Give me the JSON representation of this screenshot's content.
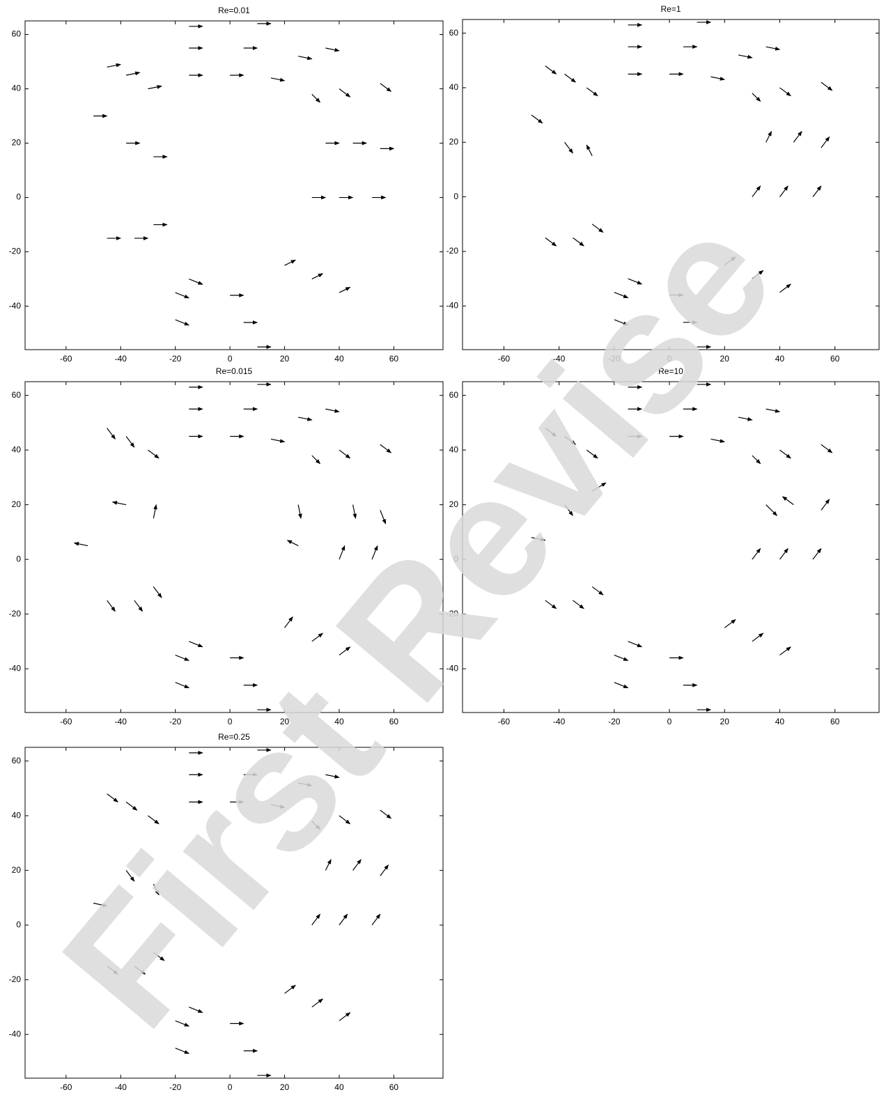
{
  "chart_data": [
    {
      "type": "quiver",
      "title": "Re=0.01",
      "color": "#000000",
      "xlim": [
        -75,
        78
      ],
      "ylim": [
        -56,
        65
      ],
      "xticks": [
        -60,
        -40,
        -20,
        0,
        20,
        40,
        60
      ],
      "yticks": [
        -40,
        -20,
        0,
        20,
        40,
        60
      ],
      "x": [
        -30,
        -15,
        0,
        15,
        30,
        35,
        30,
        20,
        0,
        -15,
        -28,
        -28,
        -38,
        -15,
        5,
        25,
        40,
        45,
        40,
        30,
        5,
        -20,
        -35,
        -38,
        -45,
        -15,
        10,
        35,
        55,
        55,
        52,
        40,
        10,
        -20,
        -45,
        -50
      ],
      "y": [
        40,
        45,
        45,
        44,
        38,
        20,
        0,
        -25,
        -36,
        -30,
        -10,
        15,
        45,
        55,
        55,
        52,
        40,
        20,
        0,
        -30,
        -46,
        -35,
        -15,
        20,
        48,
        63,
        64,
        55,
        42,
        18,
        0,
        -35,
        -55,
        -45,
        -15,
        30
      ],
      "u": [
        5,
        5,
        5,
        5,
        3,
        5,
        5,
        4,
        5,
        5,
        5,
        5,
        5,
        5,
        5,
        5,
        4,
        5,
        5,
        4,
        5,
        5,
        5,
        5,
        5,
        5,
        5,
        5,
        4,
        5,
        5,
        4,
        5,
        5,
        5,
        5
      ],
      "v": [
        1,
        0,
        0,
        -1,
        -3,
        0,
        0,
        2,
        0,
        -2,
        0,
        0,
        1,
        0,
        0,
        -1,
        -3,
        0,
        0,
        2,
        0,
        -2,
        0,
        0,
        1,
        0,
        0,
        -1,
        -3,
        0,
        0,
        2,
        0,
        -2,
        0,
        0
      ]
    },
    {
      "type": "quiver",
      "title": "Re=1",
      "color": "#000000",
      "xlim": [
        -75,
        76
      ],
      "ylim": [
        -56,
        65
      ],
      "xticks": [
        -60,
        -40,
        -20,
        0,
        20,
        40,
        60
      ],
      "yticks": [
        -40,
        -20,
        0,
        20,
        40,
        60
      ],
      "x": [
        -30,
        -15,
        0,
        15,
        30,
        35,
        30,
        20,
        0,
        -15,
        -28,
        -28,
        -38,
        -15,
        5,
        25,
        40,
        45,
        40,
        30,
        5,
        -20,
        -35,
        -38,
        -45,
        -15,
        10,
        35,
        55,
        55,
        52,
        40,
        10,
        -20,
        -45,
        -50
      ],
      "y": [
        40,
        45,
        45,
        44,
        38,
        20,
        0,
        -25,
        -36,
        -30,
        -10,
        15,
        45,
        55,
        55,
        52,
        40,
        20,
        0,
        -30,
        -46,
        -35,
        -15,
        20,
        48,
        63,
        64,
        55,
        42,
        18,
        0,
        -35,
        -55,
        -45,
        -15,
        30
      ],
      "u": [
        4,
        5,
        5,
        5,
        3,
        2,
        3,
        4,
        5,
        5,
        4,
        -2,
        4,
        5,
        5,
        5,
        4,
        3,
        3,
        4,
        5,
        5,
        4,
        3,
        4,
        5,
        5,
        5,
        4,
        3,
        3,
        4,
        5,
        5,
        4,
        4
      ],
      "v": [
        -3,
        0,
        0,
        -1,
        -3,
        4,
        4,
        3,
        0,
        -2,
        -3,
        4,
        -3,
        0,
        0,
        -1,
        -3,
        4,
        4,
        3,
        0,
        -2,
        -3,
        -4,
        -3,
        0,
        0,
        -1,
        -3,
        4,
        4,
        3,
        0,
        -2,
        -3,
        -3
      ]
    },
    {
      "type": "quiver",
      "title": "Re=0.015",
      "color": "#000000",
      "xlim": [
        -75,
        78
      ],
      "ylim": [
        -56,
        65
      ],
      "xticks": [
        -60,
        -40,
        -20,
        0,
        20,
        40,
        60
      ],
      "yticks": [
        -40,
        -20,
        0,
        20,
        40,
        60
      ],
      "x": [
        -30,
        -15,
        0,
        15,
        30,
        25,
        25,
        20,
        0,
        -15,
        -28,
        -28,
        -38,
        -15,
        5,
        25,
        40,
        45,
        40,
        30,
        5,
        -20,
        -35,
        -38,
        -45,
        -15,
        10,
        35,
        55,
        55,
        52,
        40,
        10,
        -20,
        -45,
        -52
      ],
      "y": [
        40,
        45,
        45,
        44,
        38,
        20,
        5,
        -25,
        -36,
        -30,
        -10,
        15,
        45,
        55,
        55,
        52,
        40,
        20,
        0,
        -30,
        -46,
        -35,
        -15,
        20,
        48,
        63,
        64,
        55,
        42,
        18,
        0,
        -35,
        -55,
        -45,
        -15,
        5
      ],
      "u": [
        4,
        5,
        5,
        5,
        3,
        1,
        -4,
        3,
        5,
        5,
        3,
        1,
        3,
        5,
        5,
        5,
        4,
        1,
        2,
        4,
        5,
        5,
        3,
        -5,
        3,
        5,
        5,
        5,
        4,
        2,
        2,
        4,
        5,
        5,
        3,
        -5
      ],
      "v": [
        -3,
        0,
        0,
        -1,
        -3,
        -5,
        2,
        4,
        0,
        -2,
        -4,
        5,
        -4,
        0,
        0,
        -1,
        -3,
        -5,
        5,
        3,
        0,
        -2,
        -4,
        1,
        -4,
        0,
        0,
        -1,
        -3,
        -5,
        5,
        3,
        0,
        -2,
        -4,
        1
      ]
    },
    {
      "type": "quiver",
      "title": "Re=10",
      "color": "#000000",
      "xlim": [
        -75,
        76
      ],
      "ylim": [
        -56,
        65
      ],
      "xticks": [
        -60,
        -40,
        -20,
        0,
        20,
        40,
        60
      ],
      "yticks": [
        -40,
        -20,
        0,
        20,
        40,
        60
      ],
      "x": [
        -30,
        -15,
        0,
        15,
        30,
        35,
        30,
        20,
        0,
        -15,
        -28,
        -28,
        -38,
        -15,
        5,
        25,
        40,
        45,
        40,
        30,
        5,
        -20,
        -35,
        -38,
        -45,
        -15,
        10,
        35,
        55,
        55,
        52,
        40,
        10,
        -20,
        -45,
        -50
      ],
      "y": [
        40,
        45,
        45,
        44,
        38,
        20,
        0,
        -25,
        -36,
        -30,
        -10,
        25,
        45,
        55,
        55,
        52,
        40,
        20,
        0,
        -30,
        -46,
        -35,
        -15,
        20,
        48,
        63,
        64,
        55,
        42,
        18,
        0,
        -35,
        -55,
        -45,
        -15,
        8
      ],
      "u": [
        4,
        5,
        5,
        5,
        3,
        4,
        3,
        4,
        5,
        5,
        4,
        5,
        4,
        5,
        5,
        5,
        4,
        -4,
        3,
        4,
        5,
        5,
        4,
        3,
        4,
        5,
        5,
        5,
        4,
        3,
        3,
        4,
        5,
        5,
        4,
        5
      ],
      "v": [
        -3,
        0,
        0,
        -1,
        -3,
        -4,
        4,
        3,
        0,
        -2,
        -3,
        3,
        -3,
        0,
        0,
        -1,
        -3,
        3,
        4,
        3,
        0,
        -2,
        -3,
        -4,
        -3,
        0,
        0,
        -1,
        -3,
        4,
        4,
        3,
        0,
        -2,
        -3,
        -1
      ]
    },
    {
      "type": "quiver",
      "title": "Re=0.25",
      "color": "#000000",
      "xlim": [
        -75,
        78
      ],
      "ylim": [
        -56,
        65
      ],
      "xticks": [
        -60,
        -40,
        -20,
        0,
        20,
        40,
        60
      ],
      "yticks": [
        -40,
        -20,
        0,
        20,
        40,
        60
      ],
      "x": [
        -30,
        -15,
        0,
        15,
        30,
        35,
        30,
        20,
        0,
        -15,
        -28,
        -28,
        -38,
        -15,
        5,
        25,
        40,
        45,
        40,
        30,
        5,
        -20,
        -35,
        -38,
        -45,
        -15,
        10,
        35,
        55,
        55,
        52,
        40,
        10,
        -20,
        -45,
        -50
      ],
      "y": [
        40,
        45,
        45,
        44,
        38,
        20,
        0,
        -25,
        -36,
        -30,
        -10,
        15,
        45,
        55,
        55,
        52,
        40,
        20,
        0,
        -30,
        -46,
        -35,
        -15,
        20,
        48,
        63,
        64,
        55,
        42,
        18,
        0,
        -35,
        -55,
        -45,
        -15,
        8
      ],
      "u": [
        4,
        5,
        5,
        5,
        3,
        2,
        3,
        4,
        5,
        5,
        4,
        2,
        4,
        5,
        5,
        5,
        4,
        3,
        3,
        4,
        5,
        5,
        4,
        3,
        4,
        5,
        5,
        5,
        4,
        3,
        3,
        4,
        5,
        5,
        4,
        5
      ],
      "v": [
        -3,
        0,
        0,
        -1,
        -3,
        4,
        4,
        3,
        0,
        -2,
        -3,
        -4,
        -3,
        0,
        0,
        -1,
        -3,
        4,
        4,
        3,
        0,
        -2,
        -3,
        -4,
        -3,
        0,
        0,
        -1,
        -3,
        4,
        4,
        3,
        0,
        -2,
        -3,
        -1
      ]
    }
  ],
  "watermark": "First Revise"
}
